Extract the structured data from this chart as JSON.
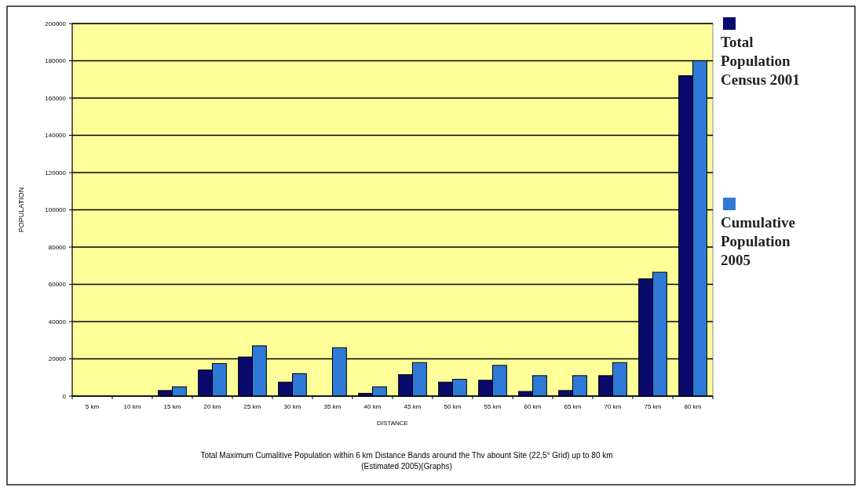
{
  "chart_data": {
    "type": "bar",
    "xlabel": "DISTANCE",
    "ylabel": "POPULATION",
    "categories": [
      "5 km",
      "10 km",
      "15 km",
      "20 km",
      "25 km",
      "30 km",
      "35 km",
      "40 km",
      "45 km",
      "50 km",
      "55 km",
      "60 km",
      "65 km",
      "70 km",
      "75 km",
      "80 km"
    ],
    "series": [
      {
        "name": "Total Population Census 2001",
        "color": "#0a0a6e",
        "values": [
          null,
          null,
          3000,
          14000,
          21000,
          7500,
          null,
          1500,
          11500,
          7500,
          8500,
          2500,
          3000,
          11000,
          63000,
          172000
        ]
      },
      {
        "name": "Cumulative Population 2005",
        "color": "#2e7ad6",
        "values": [
          null,
          null,
          5000,
          17500,
          27000,
          12000,
          26000,
          5000,
          18000,
          9000,
          16500,
          11000,
          11000,
          18000,
          66500,
          180000
        ]
      }
    ],
    "ylim": [
      0,
      200000
    ],
    "yticks": [
      0,
      20000,
      40000,
      60000,
      80000,
      100000,
      120000,
      140000,
      160000,
      180000,
      200000
    ],
    "grid": "y",
    "legend": "right",
    "annotations": [
      "Total Maximum Cumalitive Population within 6 km Distance Bands around the Thv abount Site (22,5° Grid) up to 80 km",
      "(Estimated 2005)(Graphs)"
    ]
  }
}
